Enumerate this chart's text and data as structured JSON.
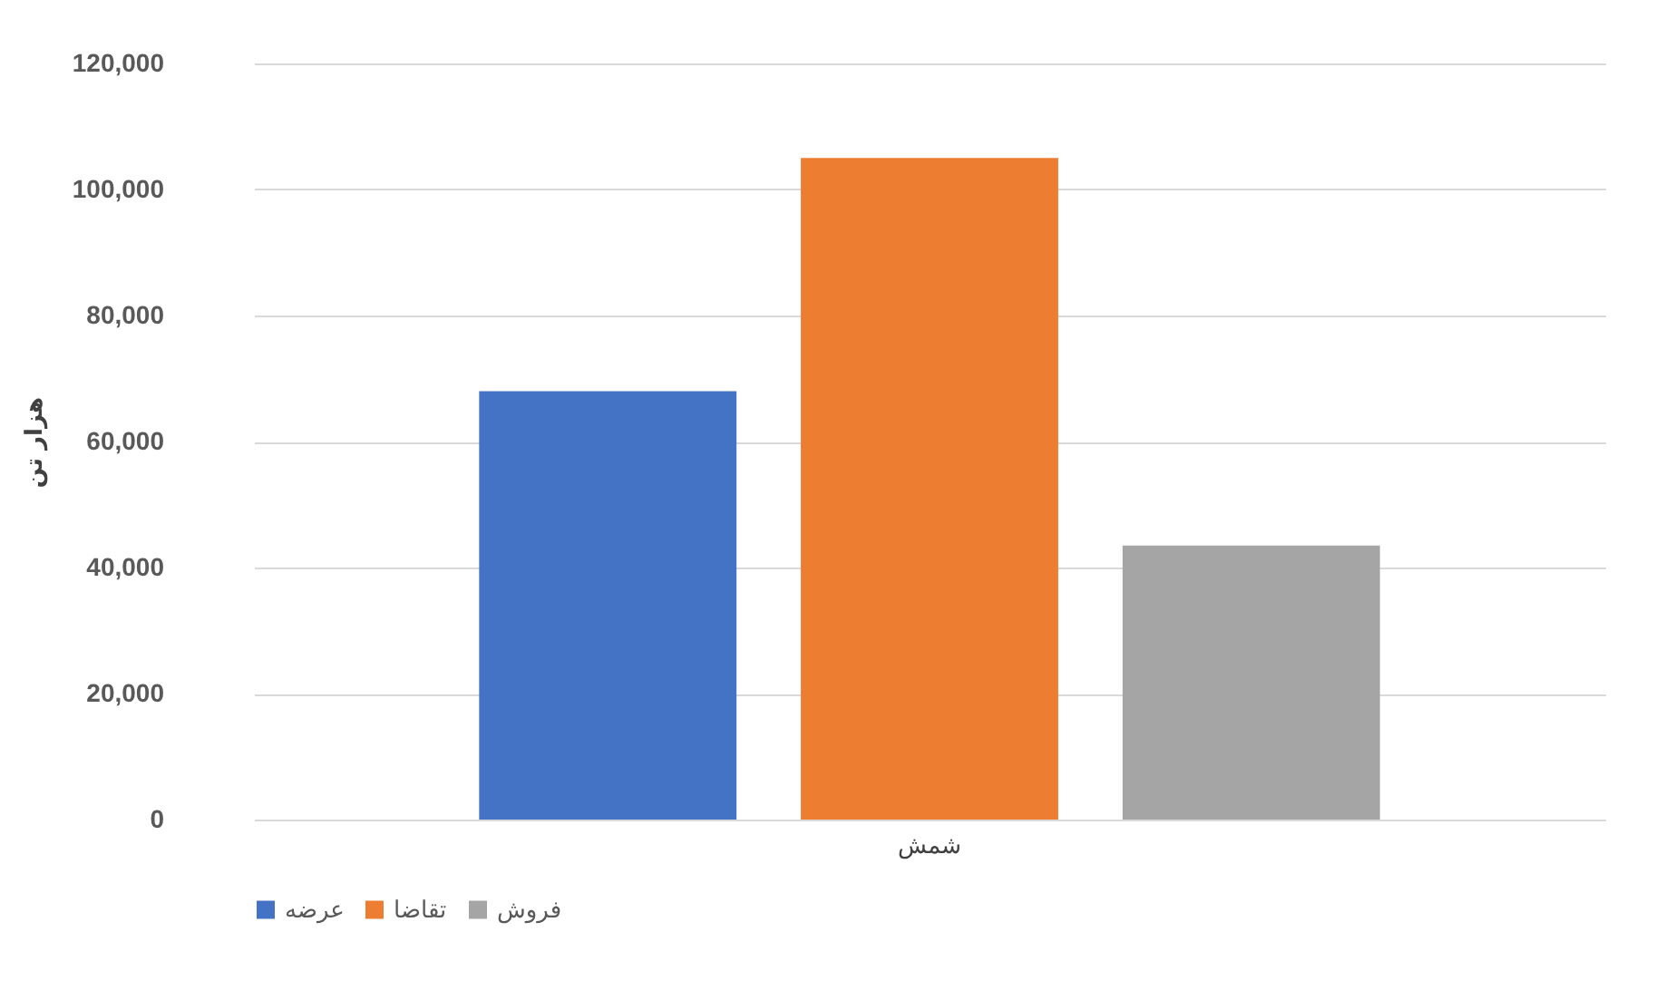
{
  "chart_data": {
    "type": "bar",
    "ylabel": "هزار تن",
    "categories": [
      "شمش"
    ],
    "series": [
      {
        "name": "عرضه",
        "color": "#4472c4",
        "values": [
          68000
        ]
      },
      {
        "name": "تقاضا",
        "color": "#ed7d31",
        "values": [
          105000
        ]
      },
      {
        "name": "فروش",
        "color": "#a5a5a5",
        "values": [
          43500
        ]
      }
    ],
    "ylim": [
      0,
      120000
    ],
    "yticks": [
      0,
      {
        "value": 20000,
        "label": "20,000"
      },
      {
        "value": 40000,
        "label": "40,000"
      },
      {
        "value": 60000,
        "label": "60,000"
      },
      {
        "value": 80000,
        "label": "80,000"
      },
      {
        "value": 100000,
        "label": "100,000"
      },
      {
        "value": 120000,
        "label": "120,000"
      }
    ],
    "grid": "y",
    "legend": "bottom"
  }
}
